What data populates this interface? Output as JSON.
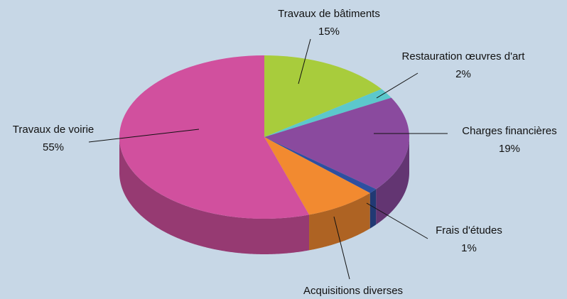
{
  "chart_data": {
    "type": "pie",
    "categories": [
      "Travaux de bâtiments",
      "Restauration œuvres d'art",
      "Charges financières",
      "Frais d'études",
      "Acquisitions diverses",
      "Travaux de voirie"
    ],
    "values": [
      15,
      2,
      19,
      1,
      8,
      55
    ],
    "value_labels": [
      "15%",
      "2%",
      "19%",
      "1%",
      null,
      "55%"
    ],
    "colors": [
      "#a8cc3c",
      "#5cc8cc",
      "#8a4a9e",
      "#2e4fa0",
      "#f28a30",
      "#d1509e"
    ]
  }
}
